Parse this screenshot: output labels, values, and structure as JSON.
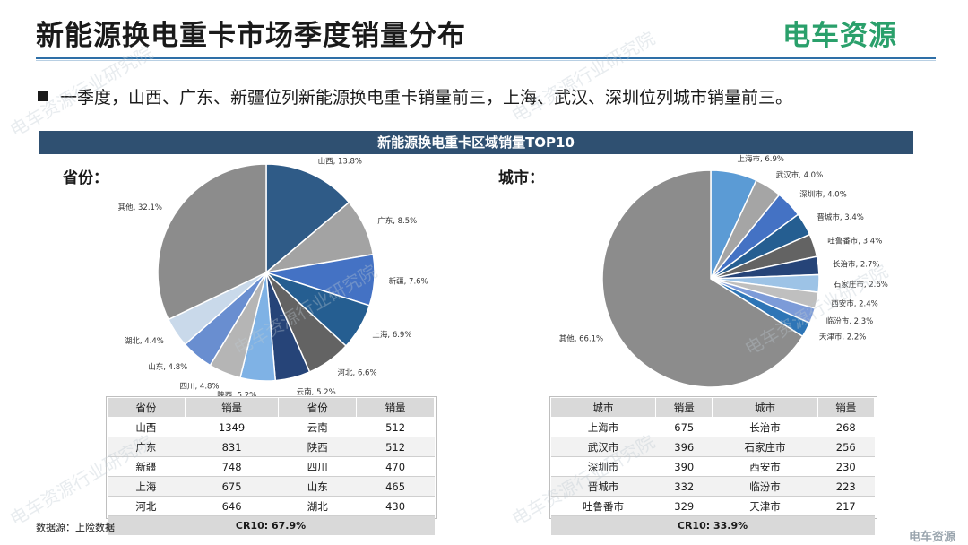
{
  "header": {
    "title": "新能源换电重卡市场季度销量分布",
    "logo": "电车资源"
  },
  "bullet": "一季度，山西、广东、新疆位列新能源换电重卡销量前三，上海、武汉、深圳位列城市销量前三。",
  "banner": "新能源换电重卡区域销量TOP10",
  "province_label": "省份：",
  "city_label": "城市：",
  "colors": {
    "title_rule": "#2e6fa7",
    "banner": "#2f5071",
    "logo": "#2aa06b"
  },
  "chart_data": [
    {
      "type": "pie",
      "title": "",
      "slices": [
        {
          "label": "山西",
          "value": 13.8,
          "color": "#2f5b87"
        },
        {
          "label": "广东",
          "value": 8.5,
          "color": "#a3a3a3"
        },
        {
          "label": "新疆",
          "value": 7.6,
          "color": "#4472c4"
        },
        {
          "label": "上海",
          "value": 6.9,
          "color": "#255e91"
        },
        {
          "label": "河北",
          "value": 6.6,
          "color": "#636363"
        },
        {
          "label": "云南",
          "value": 5.2,
          "color": "#264478"
        },
        {
          "label": "陕西",
          "value": 5.2,
          "color": "#7fb2e5"
        },
        {
          "label": "四川",
          "value": 4.8,
          "color": "#b5b5b5"
        },
        {
          "label": "山东",
          "value": 4.8,
          "color": "#698ed0"
        },
        {
          "label": "湖北",
          "value": 4.4,
          "color": "#c9d9ea"
        },
        {
          "label": "其他",
          "value": 32.1,
          "color": "#8c8c8c"
        }
      ]
    },
    {
      "type": "pie",
      "title": "",
      "slices": [
        {
          "label": "上海市",
          "value": 6.9,
          "color": "#5b9bd5"
        },
        {
          "label": "武汉市",
          "value": 4.0,
          "color": "#a5a5a5"
        },
        {
          "label": "深圳市",
          "value": 4.0,
          "color": "#4472c4"
        },
        {
          "label": "晋城市",
          "value": 3.4,
          "color": "#255e91"
        },
        {
          "label": "吐鲁番市",
          "value": 3.4,
          "color": "#636363"
        },
        {
          "label": "长治市",
          "value": 2.7,
          "color": "#264478"
        },
        {
          "label": "石家庄市",
          "value": 2.6,
          "color": "#9dc3e6"
        },
        {
          "label": "西安市",
          "value": 2.4,
          "color": "#bfbfbf"
        },
        {
          "label": "临汾市",
          "value": 2.3,
          "color": "#7c9bd8"
        },
        {
          "label": "天津市",
          "value": 2.2,
          "color": "#2e75b6"
        },
        {
          "label": "其他",
          "value": 66.1,
          "color": "#8c8c8c"
        }
      ]
    }
  ],
  "province_table": {
    "headers": [
      "省份",
      "销量",
      "省份",
      "销量"
    ],
    "rows": [
      [
        "山西",
        "1349",
        "云南",
        "512"
      ],
      [
        "广东",
        "831",
        "陕西",
        "512"
      ],
      [
        "新疆",
        "748",
        "四川",
        "470"
      ],
      [
        "上海",
        "675",
        "山东",
        "465"
      ],
      [
        "河北",
        "646",
        "湖北",
        "430"
      ]
    ],
    "cr": "CR10:  67.9%"
  },
  "city_table": {
    "headers": [
      "城市",
      "销量",
      "城市",
      "销量"
    ],
    "rows": [
      [
        "上海市",
        "675",
        "长治市",
        "268"
      ],
      [
        "武汉市",
        "396",
        "石家庄市",
        "256"
      ],
      [
        "深圳市",
        "390",
        "西安市",
        "230"
      ],
      [
        "晋城市",
        "332",
        "临汾市",
        "223"
      ],
      [
        "吐鲁番市",
        "329",
        "天津市",
        "217"
      ]
    ],
    "cr": "CR10:  33.9%"
  },
  "source": "数据源：上险数据",
  "watermark": "电车资源行业研究院",
  "corner_logo": "电车资源"
}
